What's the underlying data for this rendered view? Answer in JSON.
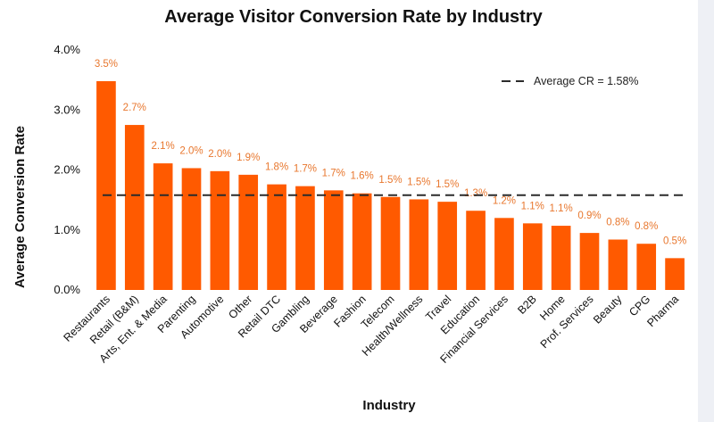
{
  "chart_data": {
    "type": "bar",
    "title": "Average Visitor Conversion Rate by Industry",
    "xlabel": "Industry",
    "ylabel": "Average Conversion Rate",
    "ylim": [
      0,
      4
    ],
    "yticks": [
      "0.0%",
      "1.0%",
      "2.0%",
      "3.0%",
      "4.0%"
    ],
    "ytick_values": [
      0,
      1,
      2,
      3,
      4
    ],
    "grid": false,
    "categories": [
      "Restaurants",
      "Retail (B&M)",
      "Arts, Ent. & Media",
      "Parenting",
      "Automotive",
      "Other",
      "Retail DTC",
      "Gambling",
      "Beverage",
      "Fashion",
      "Telecom",
      "Health/Wellness",
      "Travel",
      "Education",
      "Financial Services",
      "B2B",
      "Home",
      "Prof. Services",
      "Beauty",
      "CPG",
      "Pharma"
    ],
    "values": [
      3.48,
      2.75,
      2.11,
      2.03,
      1.98,
      1.92,
      1.76,
      1.73,
      1.66,
      1.61,
      1.55,
      1.51,
      1.47,
      1.32,
      1.2,
      1.11,
      1.07,
      0.95,
      0.84,
      0.77,
      0.53
    ],
    "data_labels": [
      "3.5%",
      "2.7%",
      "2.1%",
      "2.0%",
      "2.0%",
      "1.9%",
      "1.8%",
      "1.7%",
      "1.7%",
      "1.6%",
      "1.5%",
      "1.5%",
      "1.5%",
      "1.3%",
      "1.2%",
      "1.1%",
      "1.1%",
      "0.9%",
      "0.8%",
      "0.8%",
      "0.5%"
    ],
    "reference_line": {
      "value": 1.58,
      "label": "Average CR = 1.58%",
      "style": "dashed"
    },
    "legend_position": "top-right",
    "colors": {
      "bar": "#ff5a00",
      "data_label": "#e8772e",
      "reference_line": "#2b2b2b",
      "text": "#111111"
    }
  }
}
